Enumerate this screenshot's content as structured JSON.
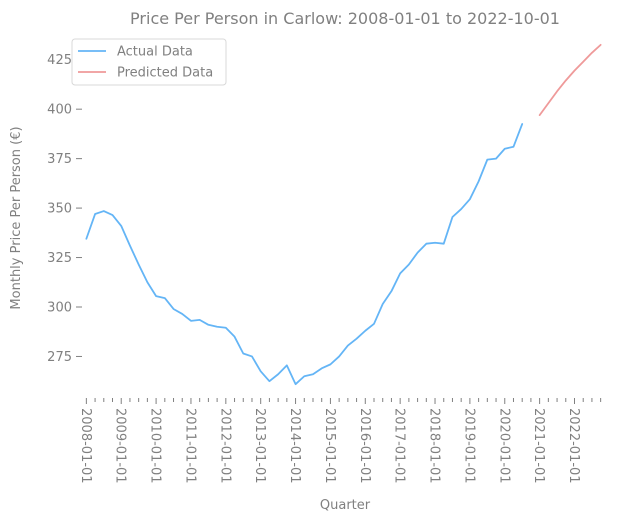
{
  "chart_data": {
    "type": "line",
    "title": "Price Per Person in Carlow: 2008-01-01 to 2022-10-01",
    "xlabel": "Quarter",
    "ylabel": "Monthly Price Per Person (€)",
    "grid": false,
    "legend_placement": "top-left",
    "x_tick_labels": [
      "2008-01-01",
      "2009-01-01",
      "2010-01-01",
      "2011-01-01",
      "2012-01-01",
      "2013-01-01",
      "2014-01-01",
      "2015-01-01",
      "2016-01-01",
      "2017-01-01",
      "2018-01-01",
      "2019-01-01",
      "2020-01-01",
      "2021-01-01",
      "2022-01-01"
    ],
    "y_ticks": [
      275,
      300,
      325,
      350,
      375,
      400,
      425
    ],
    "ylim": [
      254,
      438
    ],
    "x_quarter_range": [
      -0.5,
      59.5
    ],
    "series": [
      {
        "name": "Actual Data",
        "color": "#64b5f6",
        "start_quarter": 0,
        "values": [
          334.5,
          347.0,
          348.5,
          346.5,
          341.0,
          331.0,
          321.5,
          312.5,
          305.5,
          304.5,
          299.0,
          296.5,
          293.0,
          293.5,
          291.0,
          290.0,
          289.5,
          285.0,
          276.5,
          275.0,
          267.5,
          262.5,
          266.0,
          270.5,
          261.0,
          265.0,
          266.0,
          269.0,
          271.0,
          275.0,
          280.5,
          284.0,
          288.0,
          291.5,
          301.5,
          308.0,
          317.0,
          321.5,
          327.5,
          332.0,
          332.5,
          332.0,
          345.5,
          349.5,
          354.5,
          363.5,
          374.5,
          375.0,
          380.0,
          381.0,
          392.5
        ]
      },
      {
        "name": "Predicted Data",
        "color": "#ef9a9a",
        "start_quarter": 52,
        "values": [
          397.0,
          403.0,
          409.0,
          414.5,
          419.5,
          424.0,
          428.5,
          432.5
        ]
      }
    ]
  }
}
